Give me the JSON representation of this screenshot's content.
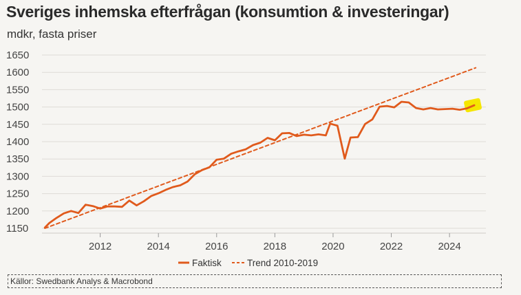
{
  "chart_data": {
    "type": "line",
    "title": "Sveriges inhemska efterfrågan (konsumtion & investeringar)",
    "subtitle": "mdkr, fasta priser",
    "xlabel": "",
    "ylabel": "mdkr, fasta priser",
    "xlim": [
      2010.0,
      2025.25
    ],
    "ylim": [
      1150,
      1650
    ],
    "yticks": [
      1150,
      1200,
      1250,
      1300,
      1350,
      1400,
      1450,
      1500,
      1550,
      1600,
      1650
    ],
    "xticks": [
      2012,
      2014,
      2016,
      2018,
      2020,
      2022,
      2024
    ],
    "grid": true,
    "legend_position": "bottom-center",
    "highlight_color": "#f5e600",
    "series": [
      {
        "name": "Faktisk",
        "style": "solid",
        "color": "#e05a1c",
        "points": [
          [
            2010.1,
            1152
          ],
          [
            2010.25,
            1165
          ],
          [
            2010.5,
            1180
          ],
          [
            2010.75,
            1193
          ],
          [
            2011.0,
            1200
          ],
          [
            2011.25,
            1194
          ],
          [
            2011.5,
            1218
          ],
          [
            2011.75,
            1214
          ],
          [
            2012.0,
            1207
          ],
          [
            2012.25,
            1213
          ],
          [
            2012.5,
            1213
          ],
          [
            2012.75,
            1212
          ],
          [
            2013.0,
            1230
          ],
          [
            2013.25,
            1216
          ],
          [
            2013.5,
            1228
          ],
          [
            2013.75,
            1243
          ],
          [
            2014.0,
            1251
          ],
          [
            2014.25,
            1261
          ],
          [
            2014.5,
            1269
          ],
          [
            2014.75,
            1274
          ],
          [
            2015.0,
            1285
          ],
          [
            2015.25,
            1306
          ],
          [
            2015.5,
            1318
          ],
          [
            2015.75,
            1326
          ],
          [
            2016.0,
            1348
          ],
          [
            2016.25,
            1351
          ],
          [
            2016.5,
            1365
          ],
          [
            2016.75,
            1372
          ],
          [
            2017.0,
            1378
          ],
          [
            2017.25,
            1390
          ],
          [
            2017.5,
            1397
          ],
          [
            2017.75,
            1411
          ],
          [
            2018.0,
            1404
          ],
          [
            2018.25,
            1424
          ],
          [
            2018.5,
            1425
          ],
          [
            2018.75,
            1416
          ],
          [
            2019.0,
            1420
          ],
          [
            2019.25,
            1418
          ],
          [
            2019.5,
            1421
          ],
          [
            2019.75,
            1418
          ],
          [
            2019.9,
            1452
          ],
          [
            2020.15,
            1446
          ],
          [
            2020.4,
            1351
          ],
          [
            2020.6,
            1412
          ],
          [
            2020.85,
            1413
          ],
          [
            2021.1,
            1451
          ],
          [
            2021.35,
            1464
          ],
          [
            2021.6,
            1501
          ],
          [
            2021.85,
            1503
          ],
          [
            2022.1,
            1499
          ],
          [
            2022.35,
            1515
          ],
          [
            2022.6,
            1513
          ],
          [
            2022.85,
            1497
          ],
          [
            2023.1,
            1493
          ],
          [
            2023.35,
            1497
          ],
          [
            2023.6,
            1493
          ],
          [
            2023.85,
            1494
          ],
          [
            2024.1,
            1495
          ],
          [
            2024.35,
            1492
          ],
          [
            2024.6,
            1496
          ],
          [
            2024.85,
            1505
          ]
        ]
      },
      {
        "name": "Trend 2010-2019",
        "style": "dashed",
        "color": "#e05a1c",
        "points": [
          [
            2010.1,
            1150
          ],
          [
            2024.9,
            1613
          ]
        ]
      }
    ]
  },
  "source": "Källor: Swedbank Analys & Macrobond"
}
